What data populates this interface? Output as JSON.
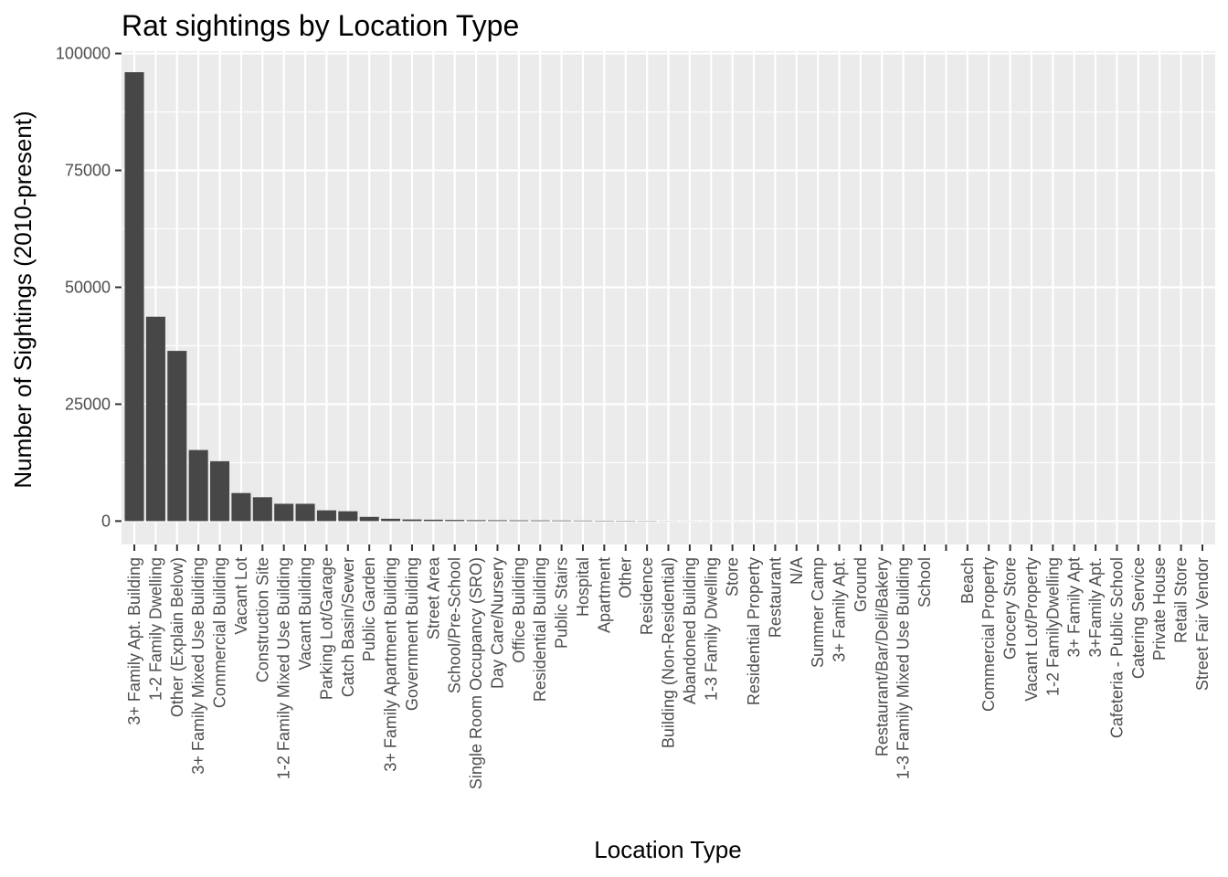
{
  "chart_data": {
    "type": "bar",
    "title": "Rat sightings by Location Type",
    "xlabel": "Location Type",
    "ylabel": "Number of Sightings (2010-present)",
    "ylim": [
      -5000,
      100500
    ],
    "yticks": [
      0,
      25000,
      50000,
      75000,
      100000
    ],
    "ytick_labels": [
      "0",
      "25000",
      "50000",
      "75000",
      "100000"
    ],
    "grid": true,
    "legend": "none",
    "colors": {
      "bar": "#474747",
      "panel": "#ebebeb",
      "grid": "#ffffff"
    },
    "categories": [
      "3+ Family Apt. Building",
      "1-2 Family Dwelling",
      "Other (Explain Below)",
      "3+ Family Mixed Use Building",
      "Commercial Building",
      "Vacant Lot",
      "Construction Site",
      "1-2 Family Mixed Use Building",
      "Vacant Building",
      "Parking Lot/Garage",
      "Catch Basin/Sewer",
      "Public Garden",
      "3+ Family Apartment Building",
      "Government Building",
      "Street Area",
      "School/Pre-School",
      "Single Room Occupancy (SRO)",
      "Day Care/Nursery",
      "Office Building",
      "Residential Building",
      "Public Stairs",
      "Hospital",
      "Apartment",
      "Other",
      "Residence",
      "Building (Non-Residential)",
      "Abandoned Building",
      "1-3 Family Dwelling",
      "Store",
      "Residential Property",
      "Restaurant",
      "N/A",
      "Summer Camp",
      "3+ Family Apt.",
      "Ground",
      "Restaurant/Bar/Deli/Bakery",
      "1-3 Family Mixed Use Building",
      "School",
      "",
      "Beach",
      "Commercial Property",
      "Grocery Store",
      "Vacant Lot/Property",
      "1-2 FamilyDwelling",
      "3+ Family Apt",
      "3+Family Apt.",
      "Cafeteria - Public School",
      "Catering Service",
      "Private House",
      "Retail Store",
      "Street Fair Vendor"
    ],
    "values": [
      96000,
      43700,
      36400,
      15200,
      12800,
      6000,
      5100,
      3700,
      3700,
      2300,
      2100,
      900,
      500,
      350,
      300,
      250,
      200,
      180,
      160,
      150,
      130,
      110,
      90,
      80,
      60,
      30,
      25,
      20,
      15,
      12,
      10,
      8,
      6,
      5,
      4,
      4,
      3,
      3,
      2,
      2,
      2,
      1,
      1,
      1,
      1,
      1,
      1,
      1,
      1,
      1,
      1
    ]
  }
}
